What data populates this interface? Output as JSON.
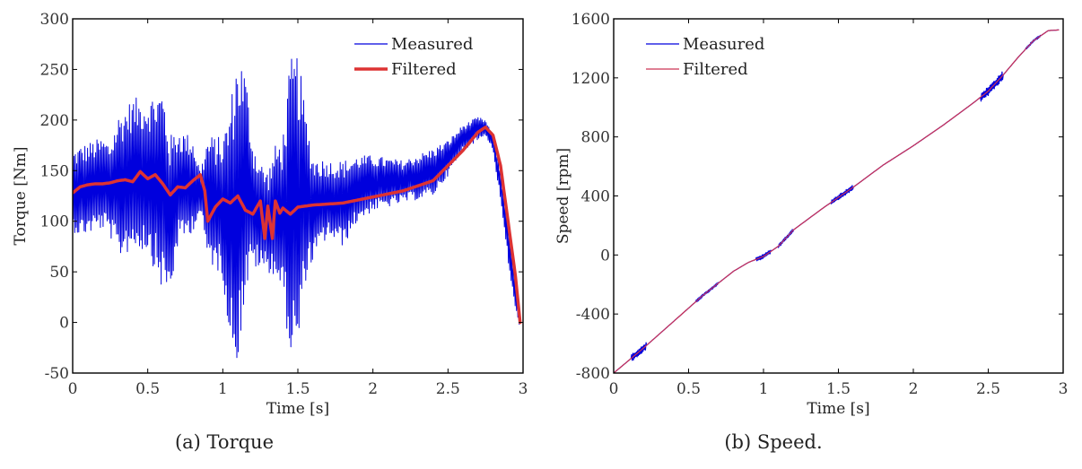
{
  "chart_data": [
    {
      "id": "torque",
      "type": "line",
      "caption": "(a)  Torque",
      "xlabel": "Time [s]",
      "ylabel": "Torque [Nm]",
      "xlim": [
        0,
        3
      ],
      "ylim": [
        -50,
        300
      ],
      "xticks": [
        0,
        0.5,
        1,
        1.5,
        2,
        2.5,
        3
      ],
      "xtick_labels": [
        "0",
        "0.5",
        "1",
        "1.5",
        "2",
        "2.5",
        "3"
      ],
      "yticks": [
        -50,
        0,
        50,
        100,
        150,
        200,
        250,
        300
      ],
      "ytick_labels": [
        "-50",
        "0",
        "50",
        "100",
        "150",
        "200",
        "250",
        "300"
      ],
      "grid": false,
      "legend": {
        "position": "top-right",
        "entries": [
          "Measured",
          "Filtered"
        ]
      },
      "series": [
        {
          "name": "Measured",
          "color": "#0000dd",
          "style": "oscillating",
          "envelope": {
            "x": [
              0,
              0.05,
              0.2,
              0.25,
              0.3,
              0.4,
              0.5,
              0.6,
              0.65,
              0.7,
              0.8,
              0.85,
              0.9,
              1.0,
              1.05,
              1.1,
              1.15,
              1.2,
              1.25,
              1.3,
              1.35,
              1.4,
              1.45,
              1.5,
              1.55,
              1.6,
              1.7,
              1.8,
              1.9,
              2.0,
              2.2,
              2.4,
              2.5,
              2.6,
              2.7,
              2.75,
              2.8,
              2.85,
              2.9,
              2.95,
              2.98
            ],
            "upper": [
              170,
              175,
              183,
              178,
              205,
              222,
              222,
              233,
              185,
              193,
              183,
              150,
              185,
              183,
              218,
              270,
              250,
              180,
              160,
              150,
              175,
              185,
              260,
              268,
              210,
              165,
              160,
              160,
              165,
              165,
              160,
              172,
              180,
              195,
              203,
              200,
              185,
              150,
              100,
              40,
              0
            ],
            "lower": [
              90,
              85,
              92,
              85,
              62,
              72,
              70,
              30,
              25,
              75,
              90,
              108,
              60,
              45,
              -25,
              -40,
              25,
              55,
              50,
              50,
              45,
              25,
              -35,
              -38,
              40,
              60,
              85,
              75,
              100,
              110,
              118,
              125,
              145,
              170,
              180,
              185,
              170,
              120,
              60,
              10,
              -5
            ]
          }
        },
        {
          "name": "Filtered",
          "color": "#dd3333",
          "x": [
            0,
            0.05,
            0.1,
            0.15,
            0.2,
            0.25,
            0.3,
            0.35,
            0.4,
            0.45,
            0.5,
            0.55,
            0.6,
            0.65,
            0.7,
            0.75,
            0.8,
            0.85,
            0.88,
            0.9,
            0.95,
            1.0,
            1.05,
            1.1,
            1.15,
            1.2,
            1.25,
            1.28,
            1.3,
            1.33,
            1.35,
            1.38,
            1.4,
            1.45,
            1.5,
            1.55,
            1.6,
            1.8,
            2.0,
            2.2,
            2.4,
            2.5,
            2.6,
            2.7,
            2.75,
            2.8,
            2.85,
            2.9,
            2.95,
            2.98
          ],
          "y": [
            128,
            134,
            136,
            137,
            137,
            138,
            140,
            141,
            139,
            149,
            142,
            146,
            137,
            126,
            134,
            133,
            140,
            146,
            130,
            100,
            114,
            122,
            118,
            125,
            111,
            107,
            120,
            83,
            115,
            83,
            120,
            108,
            113,
            107,
            114,
            115,
            116,
            118,
            124,
            130,
            140,
            155,
            170,
            188,
            193,
            185,
            155,
            100,
            45,
            0
          ]
        }
      ]
    },
    {
      "id": "speed",
      "type": "line",
      "caption": "(b)  Speed.",
      "xlabel": "Time [s]",
      "ylabel": "Speed [rpm]",
      "xlim": [
        0,
        3
      ],
      "ylim": [
        -800,
        1600
      ],
      "xticks": [
        0,
        0.5,
        1,
        1.5,
        2,
        2.5,
        3
      ],
      "xtick_labels": [
        "0",
        "0.5",
        "1",
        "1.5",
        "2",
        "2.5",
        "3"
      ],
      "yticks": [
        -800,
        -400,
        0,
        400,
        800,
        1200,
        1600
      ],
      "ytick_labels": [
        "-800",
        "-400",
        "0",
        "400",
        "800",
        "1200",
        "1600"
      ],
      "grid": false,
      "legend": {
        "position": "top-left",
        "entries": [
          "Measured",
          "Filtered"
        ]
      },
      "series": [
        {
          "name": "Measured",
          "color": "#0000dd",
          "x": [
            0,
            0.2,
            0.4,
            0.6,
            0.8,
            0.9,
            1.0,
            1.1,
            1.2,
            1.4,
            1.6,
            1.8,
            2.0,
            2.2,
            2.4,
            2.5,
            2.6,
            2.7,
            2.8,
            2.9,
            2.97
          ],
          "y": [
            -800,
            -630,
            -450,
            -270,
            -110,
            -50,
            -10,
            60,
            170,
            320,
            460,
            610,
            740,
            880,
            1030,
            1110,
            1220,
            1340,
            1450,
            1520,
            1525
          ],
          "noise_regions": [
            [
              0.12,
              0.22,
              25
            ],
            [
              0.55,
              0.7,
              10
            ],
            [
              0.95,
              1.05,
              15
            ],
            [
              1.1,
              1.2,
              12
            ],
            [
              1.45,
              1.6,
              18
            ],
            [
              2.45,
              2.6,
              30
            ],
            [
              2.75,
              2.85,
              8
            ]
          ]
        },
        {
          "name": "Filtered",
          "color": "#cc3355",
          "x": [
            0,
            0.2,
            0.4,
            0.6,
            0.8,
            0.9,
            1.0,
            1.1,
            1.2,
            1.4,
            1.6,
            1.8,
            2.0,
            2.2,
            2.4,
            2.5,
            2.6,
            2.7,
            2.8,
            2.9,
            2.97
          ],
          "y": [
            -800,
            -630,
            -450,
            -270,
            -110,
            -50,
            -10,
            60,
            170,
            320,
            460,
            610,
            740,
            880,
            1030,
            1110,
            1220,
            1340,
            1450,
            1520,
            1525
          ]
        }
      ]
    }
  ]
}
